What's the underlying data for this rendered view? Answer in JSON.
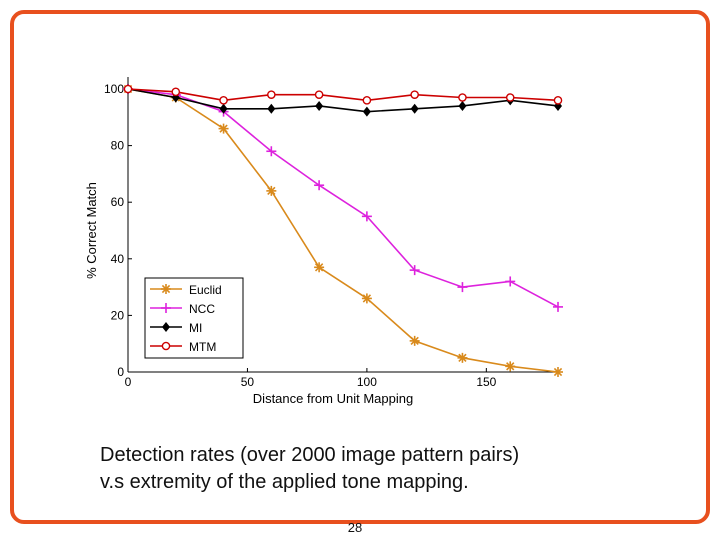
{
  "caption": {
    "line1": "Detection rates (over 2000 image pattern pairs)",
    "line2": "v.s extremity of the applied tone mapping."
  },
  "page_number": "28",
  "colors": {
    "frame": "#e8501e",
    "euclid": "#d98a1c",
    "ncc": "#dd22dd",
    "mi": "#000000",
    "mtm": "#cc0000"
  },
  "chart_data": {
    "type": "line",
    "xlabel": "Distance from Unit Mapping",
    "ylabel": "% Correct Match",
    "xlim": [
      0,
      180
    ],
    "ylim": [
      0,
      100
    ],
    "xticks": [
      0,
      50,
      100,
      150
    ],
    "yticks": [
      0,
      20,
      40,
      60,
      80,
      100
    ],
    "grid": false,
    "legend": "bottom-left",
    "x": [
      0,
      20,
      40,
      60,
      80,
      100,
      120,
      140,
      160,
      180
    ],
    "series": [
      {
        "name": "Euclid",
        "marker": "asterisk",
        "color": "#d98a1c",
        "values": [
          100,
          97,
          86,
          64,
          37,
          26,
          11,
          5,
          2,
          0
        ]
      },
      {
        "name": "NCC",
        "marker": "plus",
        "color": "#dd22dd",
        "values": [
          100,
          98,
          92,
          78,
          66,
          55,
          36,
          30,
          32,
          23
        ]
      },
      {
        "name": "MI",
        "marker": "diamond",
        "color": "#000000",
        "values": [
          100,
          97,
          93,
          93,
          94,
          92,
          93,
          94,
          96,
          94
        ]
      },
      {
        "name": "MTM",
        "marker": "circle",
        "color": "#cc0000",
        "values": [
          100,
          99,
          96,
          98,
          98,
          96,
          98,
          97,
          97,
          96
        ]
      }
    ]
  }
}
